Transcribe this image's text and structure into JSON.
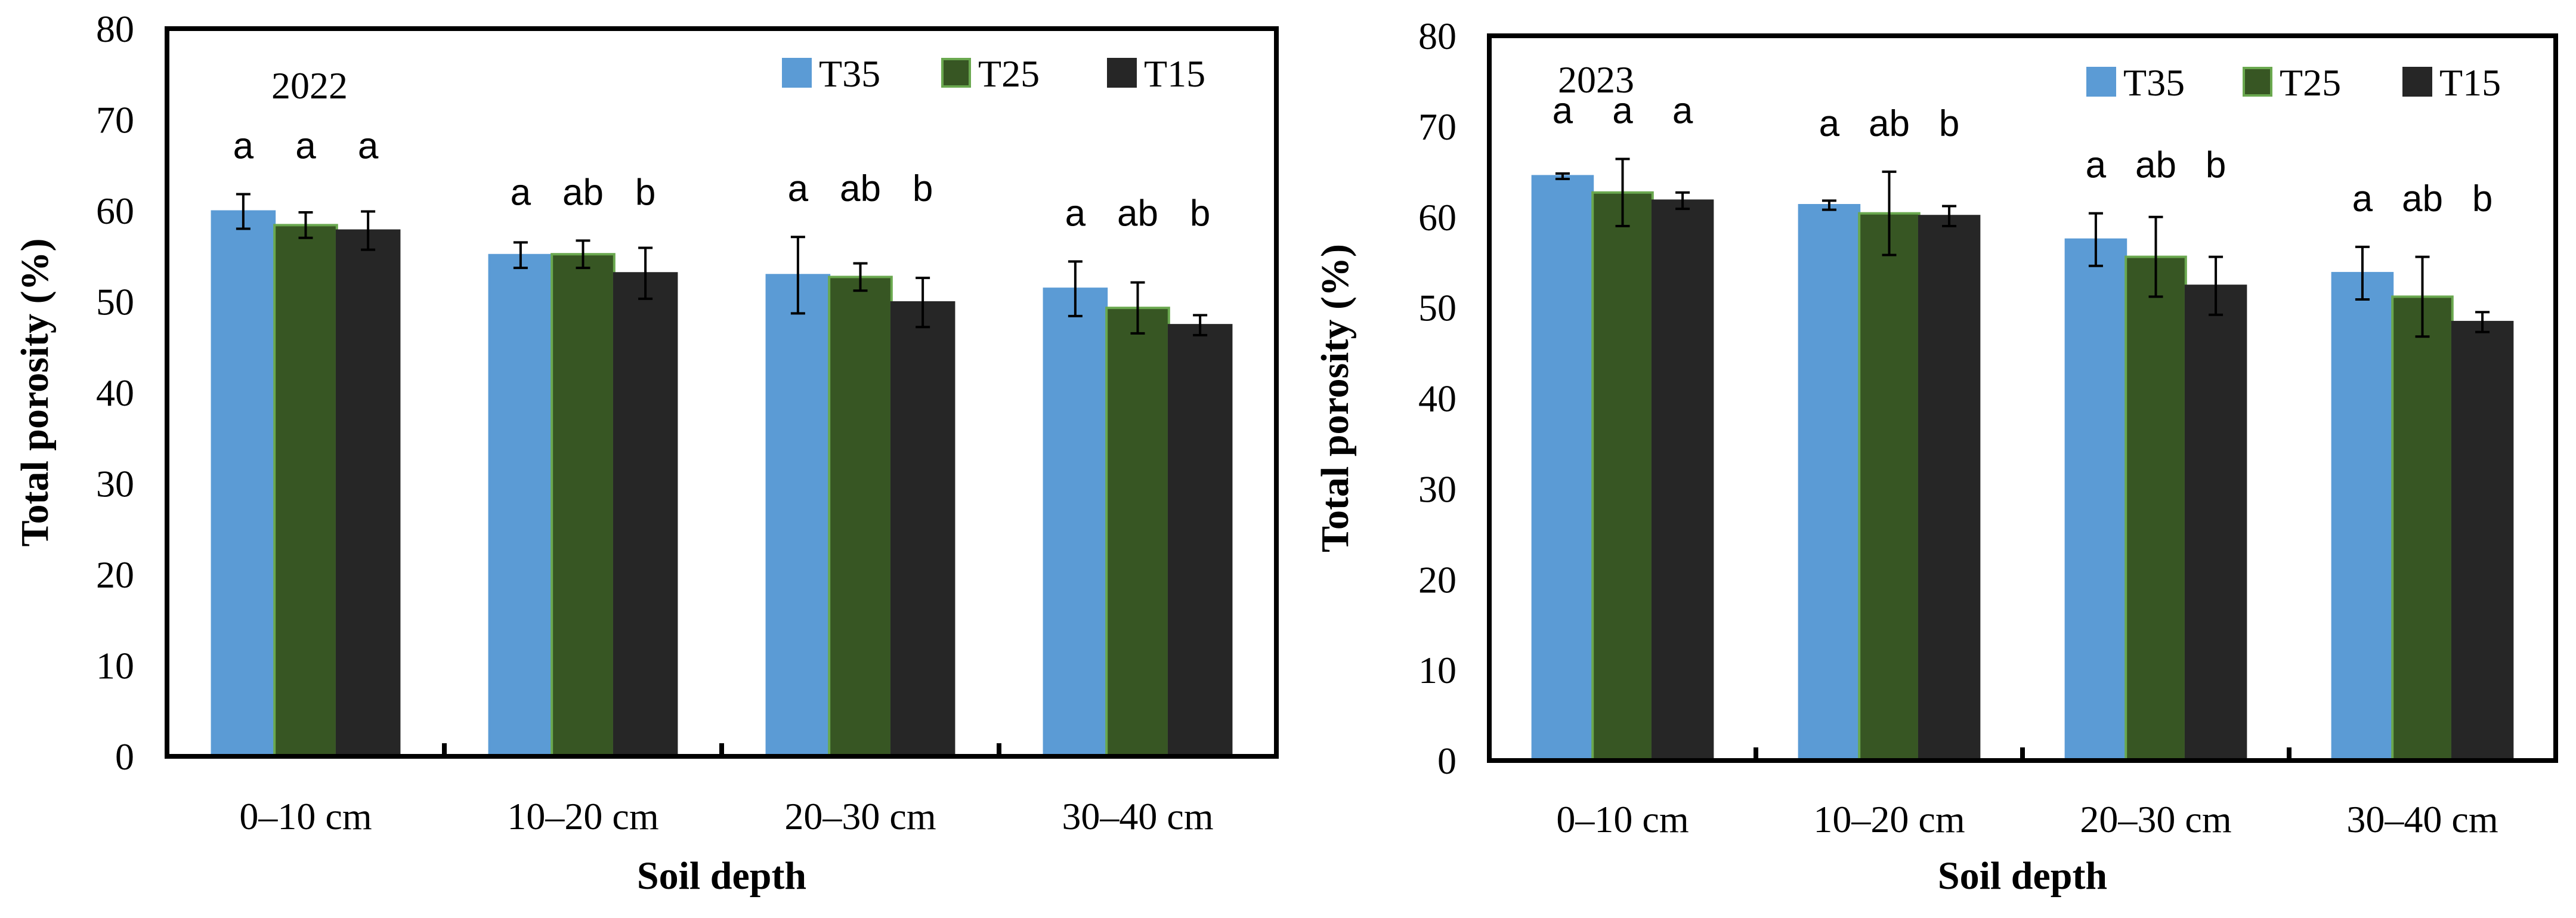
{
  "chart_data": [
    {
      "type": "bar",
      "title": "2022",
      "xlabel": "Soil depth",
      "ylabel": "Total porosity (%)",
      "ylim": [
        0,
        80
      ],
      "yticks": [
        0,
        10,
        20,
        30,
        40,
        50,
        60,
        70,
        80
      ],
      "categories": [
        "0–10 cm",
        "10–20 cm",
        "20–30 cm",
        "30–40 cm"
      ],
      "legend_position": "top-right",
      "series": [
        {
          "name": "T35",
          "color": "#5b9bd5",
          "values": [
            59.9,
            55.1,
            52.9,
            51.4
          ],
          "errors": [
            1.9,
            1.4,
            4.2,
            3.0
          ],
          "letters": [
            "a",
            "a",
            "a",
            "a"
          ]
        },
        {
          "name": "T25",
          "color": "#375623",
          "values": [
            58.4,
            55.2,
            52.7,
            49.3
          ],
          "errors": [
            1.4,
            1.5,
            1.5,
            2.8
          ],
          "letters": [
            "a",
            "ab",
            "ab",
            "ab"
          ]
        },
        {
          "name": "T15",
          "color": "#262626",
          "values": [
            57.8,
            53.1,
            49.9,
            47.4
          ],
          "errors": [
            2.1,
            2.8,
            2.7,
            1.1
          ],
          "letters": [
            "a",
            "b",
            "b",
            "b"
          ]
        }
      ]
    },
    {
      "type": "bar",
      "title": "2023",
      "xlabel": "Soil depth",
      "ylabel": "Total porosity (%)",
      "ylim": [
        0,
        80
      ],
      "yticks": [
        0,
        10,
        20,
        30,
        40,
        50,
        60,
        70,
        80
      ],
      "categories": [
        "0–10 cm",
        "10–20 cm",
        "20–30 cm",
        "30–40 cm"
      ],
      "legend_position": "top-right",
      "series": [
        {
          "name": "T35",
          "color": "#5b9bd5",
          "values": [
            64.5,
            61.3,
            57.5,
            53.8
          ],
          "errors": [
            0.3,
            0.5,
            2.9,
            2.9
          ],
          "letters": [
            "a",
            "a",
            "a",
            "a"
          ]
        },
        {
          "name": "T25",
          "color": "#375623",
          "values": [
            62.7,
            60.4,
            55.6,
            51.2
          ],
          "errors": [
            3.7,
            4.6,
            4.4,
            4.4
          ],
          "letters": [
            "a",
            "ab",
            "ab",
            "ab"
          ]
        },
        {
          "name": "T15",
          "color": "#262626",
          "values": [
            61.8,
            60.1,
            52.4,
            48.4
          ],
          "errors": [
            0.9,
            1.1,
            3.2,
            1.1
          ],
          "letters": [
            "a",
            "b",
            "b",
            "b"
          ]
        }
      ]
    }
  ]
}
